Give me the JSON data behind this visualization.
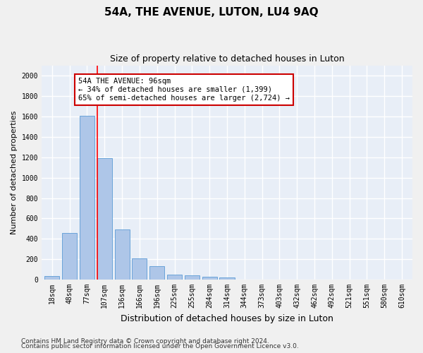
{
  "title": "54A, THE AVENUE, LUTON, LU4 9AQ",
  "subtitle": "Size of property relative to detached houses in Luton",
  "xlabel": "Distribution of detached houses by size in Luton",
  "ylabel": "Number of detached properties",
  "categories": [
    "18sqm",
    "48sqm",
    "77sqm",
    "107sqm",
    "136sqm",
    "166sqm",
    "196sqm",
    "225sqm",
    "255sqm",
    "284sqm",
    "314sqm",
    "344sqm",
    "373sqm",
    "403sqm",
    "432sqm",
    "462sqm",
    "492sqm",
    "521sqm",
    "551sqm",
    "580sqm",
    "610sqm"
  ],
  "values": [
    35,
    455,
    1610,
    1190,
    490,
    210,
    130,
    50,
    40,
    25,
    18,
    0,
    0,
    0,
    0,
    0,
    0,
    0,
    0,
    0,
    0
  ],
  "bar_color": "#aec6e8",
  "bar_edge_color": "#5b9bd5",
  "ylim": [
    0,
    2100
  ],
  "yticks": [
    0,
    200,
    400,
    600,
    800,
    1000,
    1200,
    1400,
    1600,
    1800,
    2000
  ],
  "red_line_x": 2.57,
  "annotation_text": "54A THE AVENUE: 96sqm\n← 34% of detached houses are smaller (1,399)\n65% of semi-detached houses are larger (2,724) →",
  "annotation_box_color": "#ffffff",
  "annotation_box_edge_color": "#cc0000",
  "footer_line1": "Contains HM Land Registry data © Crown copyright and database right 2024.",
  "footer_line2": "Contains public sector information licensed under the Open Government Licence v3.0.",
  "background_color": "#e8eef7",
  "grid_color": "#ffffff",
  "title_fontsize": 11,
  "subtitle_fontsize": 9,
  "axis_label_fontsize": 8,
  "tick_fontsize": 7,
  "annotation_fontsize": 7.5,
  "footer_fontsize": 6.5
}
